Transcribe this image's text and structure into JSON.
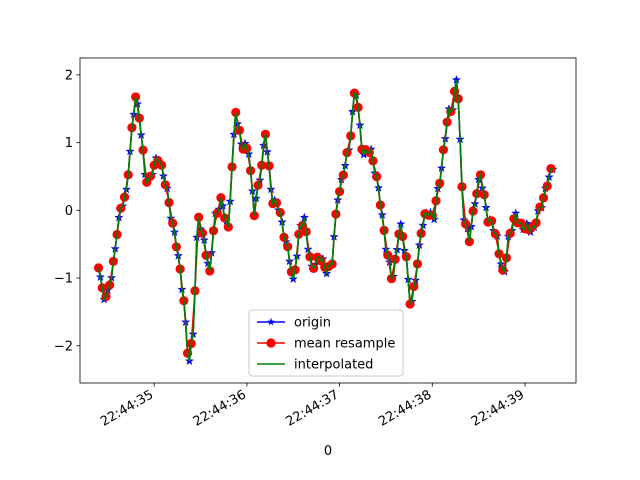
{
  "chart_data": {
    "type": "line",
    "title": "",
    "xlabel": "0",
    "ylabel": "",
    "xlim": [
      34.2,
      39.55
    ],
    "ylim": [
      -2.55,
      2.25
    ],
    "x_ticks": [
      {
        "value": 35,
        "label": "22:44:35"
      },
      {
        "value": 36,
        "label": "22:44:36"
      },
      {
        "value": 37,
        "label": "22:44:37"
      },
      {
        "value": 38,
        "label": "22:44:38"
      },
      {
        "value": 39,
        "label": "22:44:39"
      }
    ],
    "y_ticks": [
      {
        "value": 2,
        "label": "2"
      },
      {
        "value": 1,
        "label": "1"
      },
      {
        "value": 0,
        "label": "0"
      },
      {
        "value": -1,
        "label": "−1"
      },
      {
        "value": -2,
        "label": "−2"
      }
    ],
    "grid": false,
    "legend_position": "bottom-center",
    "series": [
      {
        "name": "origin",
        "color": "#0000ff",
        "marker": "star",
        "line": true
      },
      {
        "name": "mean resample",
        "color": "#ff0000",
        "marker": "circle",
        "line": true
      },
      {
        "name": "interpolated",
        "color": "#008000",
        "marker": "none",
        "line": true
      }
    ],
    "keypoints": [
      [
        34.4,
        -0.83
      ],
      [
        34.45,
        -1.25
      ],
      [
        34.5,
        -1.25
      ],
      [
        34.55,
        -0.9
      ],
      [
        34.6,
        -0.3
      ],
      [
        34.65,
        0.05
      ],
      [
        34.7,
        0.3
      ],
      [
        34.75,
        1.0
      ],
      [
        34.8,
        1.72
      ],
      [
        34.85,
        1.3
      ],
      [
        34.9,
        0.5
      ],
      [
        34.95,
        0.45
      ],
      [
        35.05,
        0.82
      ],
      [
        35.15,
        0.2
      ],
      [
        35.25,
        -0.6
      ],
      [
        35.32,
        -1.3
      ],
      [
        35.37,
        -2.32
      ],
      [
        35.42,
        -1.8
      ],
      [
        35.47,
        -0.1
      ],
      [
        35.55,
        -0.5
      ],
      [
        35.6,
        -0.97
      ],
      [
        35.65,
        -0.1
      ],
      [
        35.72,
        0.12
      ],
      [
        35.8,
        -0.25
      ],
      [
        35.88,
        1.48
      ],
      [
        35.95,
        0.92
      ],
      [
        36.02,
        0.9
      ],
      [
        36.08,
        -0.05
      ],
      [
        36.15,
        0.6
      ],
      [
        36.2,
        1.13
      ],
      [
        36.27,
        0.2
      ],
      [
        36.35,
        0.0
      ],
      [
        36.42,
        -0.45
      ],
      [
        36.5,
        -1.05
      ],
      [
        36.57,
        -0.3
      ],
      [
        36.62,
        -0.12
      ],
      [
        36.7,
        -0.9
      ],
      [
        36.78,
        -0.65
      ],
      [
        36.85,
        -0.9
      ],
      [
        36.92,
        -0.75
      ],
      [
        36.98,
        0.2
      ],
      [
        37.05,
        0.6
      ],
      [
        37.1,
        0.9
      ],
      [
        37.17,
        1.85
      ],
      [
        37.25,
        0.85
      ],
      [
        37.35,
        0.85
      ],
      [
        37.42,
        0.3
      ],
      [
        37.5,
        -0.5
      ],
      [
        37.57,
        -1.08
      ],
      [
        37.65,
        -0.2
      ],
      [
        37.72,
        -0.7
      ],
      [
        37.77,
        -1.48
      ],
      [
        37.82,
        -1.0
      ],
      [
        37.88,
        -0.3
      ],
      [
        37.95,
        0.0
      ],
      [
        38.02,
        -0.1
      ],
      [
        38.1,
        0.65
      ],
      [
        38.17,
        1.4
      ],
      [
        38.22,
        1.55
      ],
      [
        38.27,
        2.0
      ],
      [
        38.33,
        0.0
      ],
      [
        38.4,
        -0.45
      ],
      [
        38.47,
        0.25
      ],
      [
        38.52,
        0.5
      ],
      [
        38.6,
        -0.1
      ],
      [
        38.7,
        -0.4
      ],
      [
        38.77,
        -1.05
      ],
      [
        38.82,
        -0.4
      ],
      [
        38.9,
        -0.1
      ],
      [
        39.0,
        -0.28
      ],
      [
        39.1,
        -0.25
      ],
      [
        39.2,
        0.2
      ],
      [
        39.3,
        0.65
      ]
    ]
  }
}
